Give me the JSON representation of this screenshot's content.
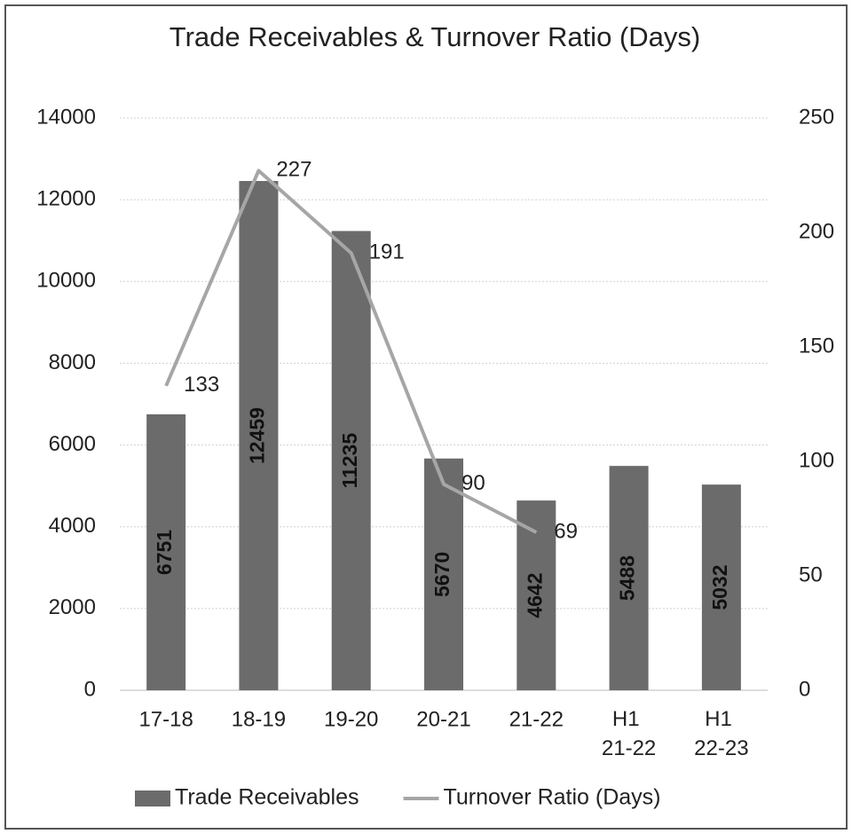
{
  "chart_data": {
    "type": "bar",
    "title": "Trade Receivables & Turnover Ratio (Days)",
    "categories": [
      "17-18",
      "18-19",
      "19-20",
      "20-21",
      "21-22",
      "H1 21-22",
      "H1 22-23"
    ],
    "series": [
      {
        "name": "Trade Receivables",
        "type": "bar",
        "color": "#6b6b6b",
        "values": [
          6751,
          12459,
          11235,
          5670,
          4642,
          5488,
          5032
        ]
      },
      {
        "name": "Turnover Ratio (Days)",
        "type": "line",
        "axis": "y2",
        "color": "#a6a6a6",
        "values": [
          133,
          227,
          191,
          90,
          69,
          null,
          null
        ]
      }
    ],
    "ylim": [
      0,
      14000
    ],
    "yticks": [
      0,
      2000,
      4000,
      6000,
      8000,
      10000,
      12000,
      14000
    ],
    "y2lim": [
      0,
      250
    ],
    "y2ticks": [
      0,
      50,
      100,
      150,
      200,
      250
    ],
    "grid": true,
    "legend": "bottom"
  }
}
